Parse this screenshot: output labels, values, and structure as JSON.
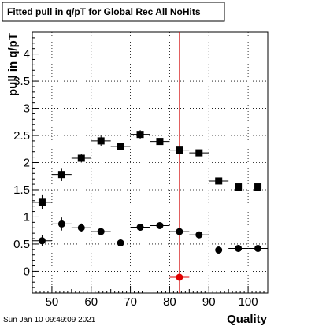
{
  "chart_data": {
    "type": "scatter",
    "title": "Fitted pull in q/pT for Global Rec All NoHits",
    "xlabel": "Quality",
    "ylabel": "pull in q/pT",
    "xlim": [
      45,
      105
    ],
    "ylim": [
      -0.4,
      4.4
    ],
    "x_ticks": [
      50,
      60,
      70,
      80,
      90,
      100
    ],
    "y_ticks": [
      0,
      0.5,
      1,
      1.5,
      2,
      2.5,
      3,
      3.5,
      4
    ],
    "grid": true,
    "timestamp": "Sun Jan 10 09:49:09 2021",
    "bin_half_width": 2.5,
    "reference_line": {
      "x": 82.5,
      "color": "#d00000"
    },
    "series": [
      {
        "marker": "square",
        "color": "#000000",
        "x": [
          47.5,
          52.5,
          57.5,
          62.5,
          67.5,
          72.5,
          77.5,
          82.5,
          87.5,
          92.5,
          97.5,
          102.5
        ],
        "y": [
          1.27,
          1.78,
          2.08,
          2.4,
          2.3,
          2.52,
          2.39,
          2.23,
          2.18,
          1.66,
          1.55,
          1.55
        ],
        "yerr": [
          0.13,
          0.12,
          0.08,
          0.1,
          0.06,
          0.08,
          0.05,
          0.04,
          0.03,
          0.02,
          0.02,
          0.02
        ]
      },
      {
        "marker": "circle",
        "color": "#000000",
        "x": [
          47.5,
          52.5,
          57.5,
          62.5,
          67.5,
          72.5,
          77.5,
          82.5,
          87.5,
          92.5,
          97.5,
          102.5
        ],
        "y": [
          0.56,
          0.87,
          0.8,
          0.73,
          0.52,
          0.81,
          0.84,
          0.73,
          0.67,
          0.39,
          0.42,
          0.42
        ],
        "yerr": [
          0.1,
          0.12,
          0.08,
          0.07,
          0.05,
          0.06,
          0.04,
          0.03,
          0.02,
          0.02,
          0.02,
          0.02
        ]
      },
      {
        "marker": "circle",
        "color": "#e00000",
        "x": [
          82.5
        ],
        "y": [
          -0.11
        ],
        "yerr": [
          0
        ]
      }
    ]
  }
}
